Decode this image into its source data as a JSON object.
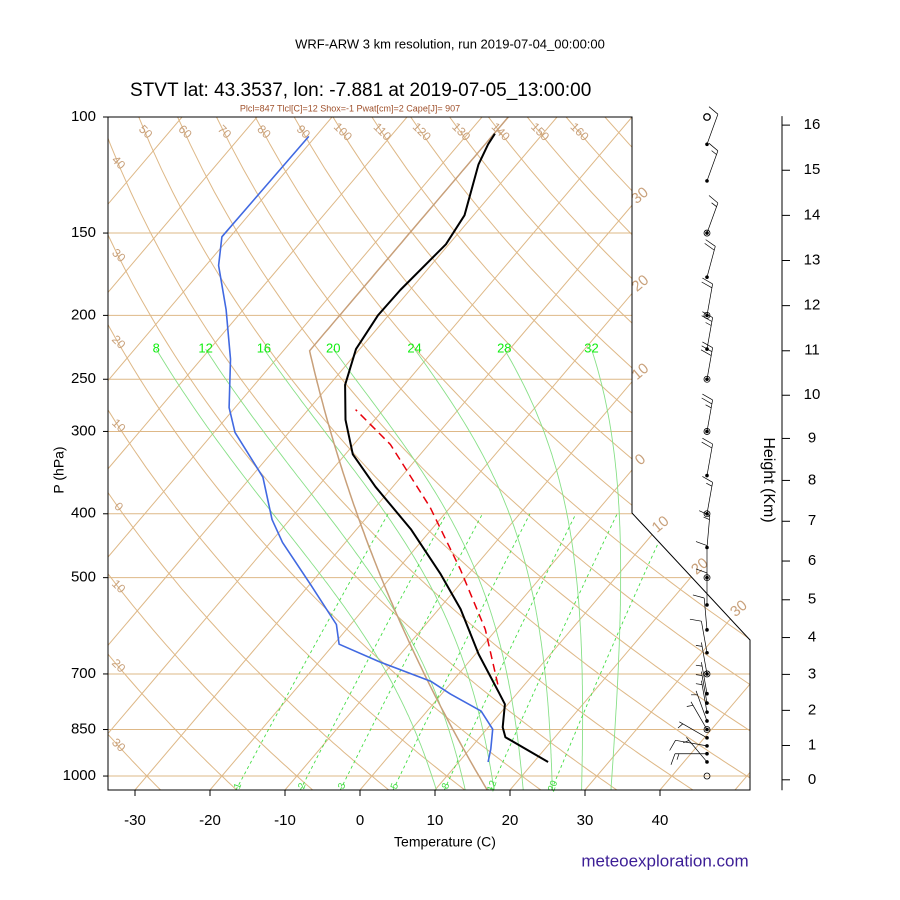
{
  "header": "WRF-ARW 3 km resolution, run 2019-07-04_00:00:00",
  "footer": "meteoexploration.com",
  "chart_data": {
    "type": "skewt",
    "title": "STVT lat: 43.3537, lon: -7.881 at 2019-07-05_13:00:00",
    "subtitle": "Plcl=847 Tlcl[C]=12 Shox=-1 Pwat[cm]=2 Cape[J]= 907",
    "x_label": "Temperature (C)",
    "y_label": "P (hPa)",
    "y2_label": "Height (Km)",
    "xlim": [
      -33.6,
      52
    ],
    "xticks": [
      -30,
      -20,
      -10,
      0,
      10,
      20,
      30,
      40
    ],
    "ylim": [
      1050,
      100
    ],
    "yticks": [
      100,
      150,
      200,
      250,
      300,
      400,
      500,
      700,
      850,
      1000
    ],
    "log_y": true,
    "grid": true,
    "y2lim": [
      -0.31,
      16.2
    ],
    "y2ticks": [
      0,
      1,
      2,
      3,
      4,
      5,
      6,
      7,
      8,
      9,
      10,
      11,
      12,
      13,
      14,
      15,
      16
    ],
    "series": [
      {
        "color": "#000000",
        "width": 2,
        "dash": false,
        "pressure": [
          952,
          873,
          843,
          778,
          746,
          653,
          558,
          494,
          422,
          364,
          325,
          288,
          255,
          225,
          200,
          183,
          156,
          141,
          118,
          110,
          106
        ],
        "values": [
          21.9,
          13.4,
          11.9,
          9.6,
          7.4,
          0.4,
          -7.1,
          -13.7,
          -22.8,
          -32.3,
          -39.0,
          -43.9,
          -47.9,
          -50.5,
          -51.4,
          -51.3,
          -50.4,
          -51.2,
          -55.1,
          -56.1,
          -56.4
        ]
      },
      {
        "color": "#4169e1",
        "width": 1.6,
        "dash": false,
        "pressure": [
          952,
          910,
          849,
          797,
          751,
          718,
          670,
          631,
          589,
          512,
          442,
          408,
          352,
          301,
          276,
          233,
          196,
          168,
          152,
          107
        ],
        "values": [
          13.9,
          12.8,
          10.8,
          7.2,
          1.2,
          -2.9,
          -12.1,
          -19.3,
          -21.9,
          -29.9,
          -38.4,
          -42.4,
          -48.4,
          -57.2,
          -60.8,
          -66.1,
          -72.3,
          -78.3,
          -81.1,
          -80.9
        ]
      },
      {
        "color": "#e8000b",
        "width": 1.5,
        "dash": true,
        "pressure": [
          726,
          599,
          486,
          391,
          314,
          278
        ],
        "values": [
          6.4,
          -1.5,
          -11.6,
          -22.7,
          -35.1,
          -43.7
        ]
      }
    ],
    "wind": {
      "pressure": [
        952,
        925,
        900,
        875,
        850,
        825,
        800,
        775,
        750,
        700,
        650,
        600,
        550,
        500,
        450,
        400,
        350,
        300,
        250,
        225,
        200,
        175,
        150,
        125,
        110,
        100
      ],
      "direction": [
        320,
        270,
        280,
        300,
        330,
        340,
        350,
        350,
        350,
        350,
        350,
        355,
        0,
        0,
        5,
        10,
        10,
        10,
        10,
        10,
        10,
        15,
        20,
        20,
        20,
        0
      ],
      "speed": [
        5,
        15,
        10,
        5,
        5,
        5,
        5,
        5,
        5,
        5,
        10,
        10,
        10,
        10,
        15,
        15,
        20,
        25,
        30,
        25,
        20,
        20,
        15,
        15,
        10,
        0
      ]
    },
    "isotherm_labels": [
      {
        "value": -30,
        "label": "30"
      },
      {
        "value": -20,
        "label": "20"
      },
      {
        "value": -10,
        "label": "10"
      },
      0,
      10,
      20,
      30
    ],
    "dry_adiabat_labels": [
      {
        "value": -30,
        "label": "30"
      },
      {
        "value": -20,
        "label": "20"
      },
      {
        "value": -10,
        "label": "10"
      },
      0,
      10,
      20,
      30,
      40,
      50,
      60,
      70,
      80,
      90,
      100,
      110,
      120,
      130,
      140,
      150,
      160
    ],
    "moist_adiabat_labels": [
      8,
      12,
      16,
      20,
      24,
      28,
      32
    ],
    "mixing_ratio_labels": [
      1,
      2,
      3,
      5,
      8,
      12,
      20
    ]
  }
}
